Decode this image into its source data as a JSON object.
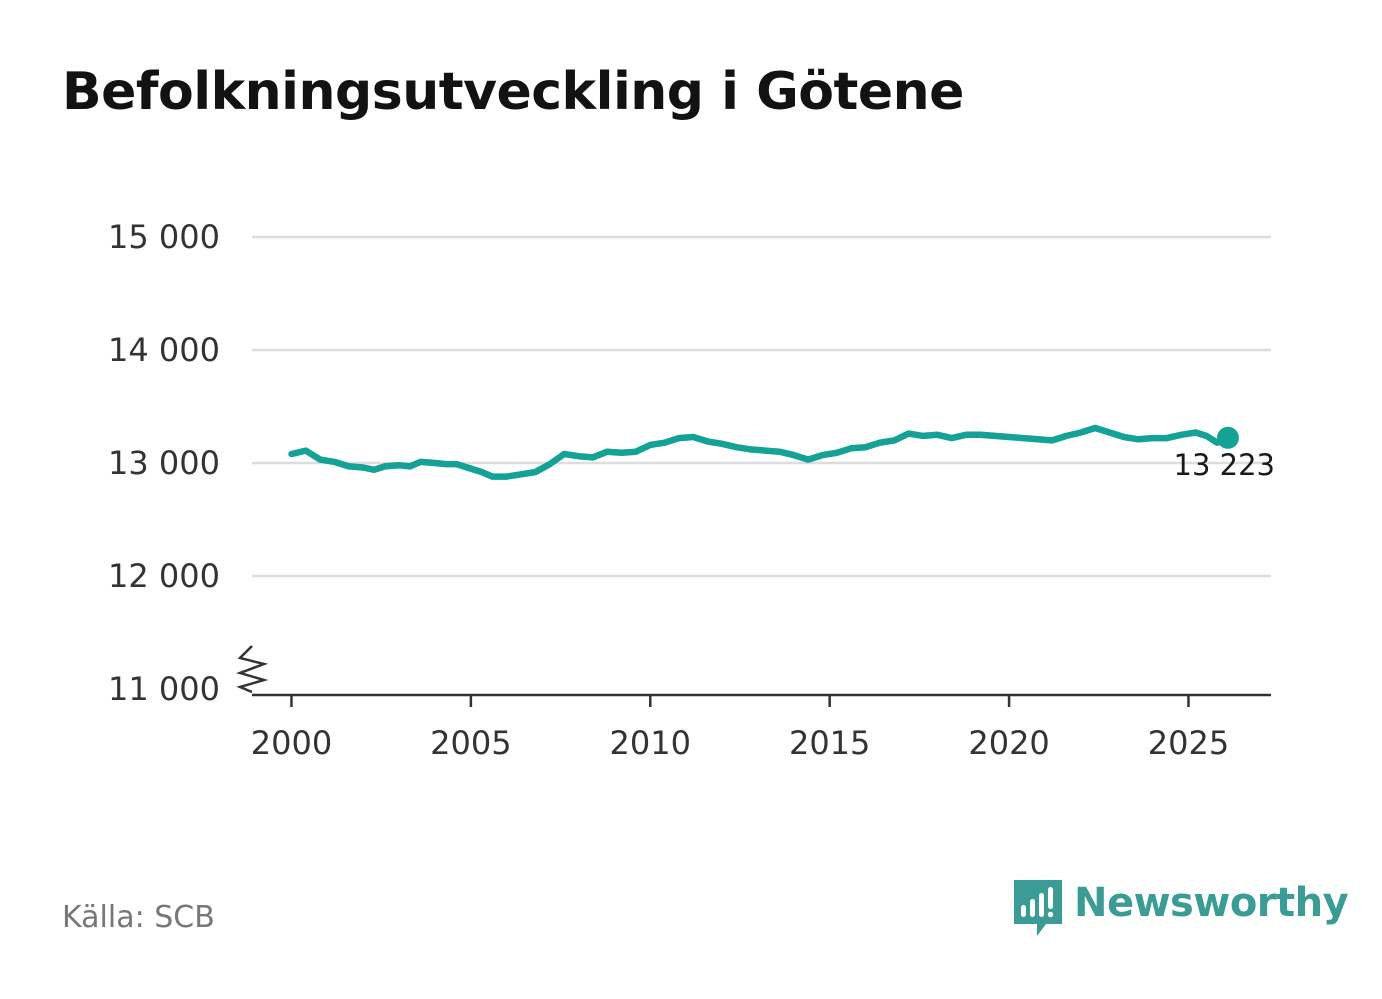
{
  "title": "Befolkningsutveckling i Götene",
  "source": "Källa: SCB",
  "brand": {
    "name": "Newsworthy",
    "icon": "newsworthy-logo-icon",
    "color": "#3b9c95"
  },
  "chart_data": {
    "type": "line",
    "title": "Befolkningsutveckling i Götene",
    "xlabel": "",
    "ylabel": "",
    "xlim": [
      1998.9,
      2027.3
    ],
    "ylim": [
      11000,
      15000
    ],
    "x_ticks": [
      2000,
      2005,
      2010,
      2015,
      2020,
      2025
    ],
    "x_tick_labels": [
      "2000",
      "2005",
      "2010",
      "2015",
      "2020",
      "2025"
    ],
    "y_ticks": [
      11000,
      12000,
      13000,
      14000,
      15000
    ],
    "y_tick_labels": [
      "11 000",
      "12 000",
      "13 000",
      "14 000",
      "15 000"
    ],
    "y_axis_break": true,
    "grid": "horizontal",
    "line_color": "#14a196",
    "end_label": "13 223",
    "series": [
      {
        "x": [
          2000.0,
          2000.4,
          2000.8,
          2001.2,
          2001.6,
          2002.0,
          2002.3,
          2002.6,
          2003.0,
          2003.3,
          2003.6,
          2004.0,
          2004.3,
          2004.6,
          2005.0,
          2005.3,
          2005.6,
          2006.0,
          2006.4,
          2006.8,
          2007.2,
          2007.6,
          2008.0,
          2008.4,
          2008.8,
          2009.2,
          2009.6,
          2010.0,
          2010.4,
          2010.8,
          2011.2,
          2011.6,
          2012.0,
          2012.4,
          2012.8,
          2013.2,
          2013.6,
          2014.0,
          2014.4,
          2014.8,
          2015.2,
          2015.6,
          2016.0,
          2016.4,
          2016.8,
          2017.2,
          2017.6,
          2018.0,
          2018.4,
          2018.8,
          2019.2,
          2019.6,
          2020.0,
          2020.4,
          2020.8,
          2021.2,
          2021.6,
          2022.0,
          2022.4,
          2022.8,
          2023.2,
          2023.6,
          2024.0,
          2024.4,
          2024.8,
          2025.2,
          2025.5,
          2025.8,
          2026.1
        ],
        "y": [
          13080,
          13110,
          13030,
          13010,
          12970,
          12960,
          12940,
          12970,
          12980,
          12970,
          13010,
          13000,
          12990,
          12990,
          12950,
          12920,
          12880,
          12880,
          12900,
          12920,
          12990,
          13080,
          13060,
          13050,
          13100,
          13090,
          13100,
          13160,
          13180,
          13220,
          13230,
          13190,
          13170,
          13140,
          13120,
          13110,
          13100,
          13070,
          13030,
          13070,
          13090,
          13130,
          13140,
          13180,
          13200,
          13260,
          13240,
          13250,
          13220,
          13250,
          13250,
          13240,
          13230,
          13220,
          13210,
          13200,
          13240,
          13270,
          13310,
          13270,
          13230,
          13210,
          13220,
          13220,
          13250,
          13270,
          13240,
          13180,
          13223
        ]
      }
    ]
  }
}
